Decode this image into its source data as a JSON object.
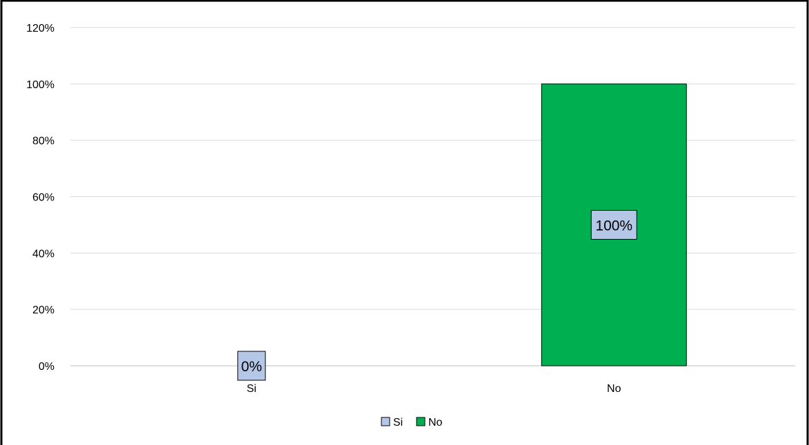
{
  "chart_data": {
    "type": "bar",
    "categories": [
      "Si",
      "No"
    ],
    "values": [
      0,
      100
    ],
    "value_labels": [
      "0%",
      "100%"
    ],
    "colors": [
      "#b4c7e7",
      "#00b050"
    ],
    "label_box_color": "#b4c7e7",
    "ylim": [
      0,
      120
    ],
    "yticks": [
      0,
      20,
      40,
      60,
      80,
      100,
      120
    ],
    "ytick_labels": [
      "0%",
      "20%",
      "40%",
      "60%",
      "80%",
      "100%",
      "120%"
    ],
    "grid": true,
    "legend": {
      "placement": "bottom",
      "entries": [
        {
          "label": "Si",
          "color": "#b4c7e7"
        },
        {
          "label": "No",
          "color": "#00b050"
        }
      ]
    }
  }
}
